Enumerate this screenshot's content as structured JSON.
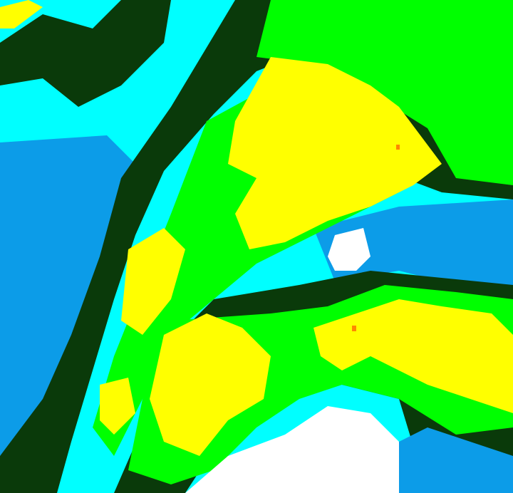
{
  "map": {
    "type": "weather-radar-reflectivity",
    "colors": {
      "no_echo": "#ffffff",
      "light_blue": "#0c9ce8",
      "cyan": "#00ffff",
      "dark_green": "#0a3a0a",
      "green": "#00ff00",
      "mid_green": "#55dd00",
      "yellow": "#ffff00",
      "orange": "#ff8800"
    }
  }
}
